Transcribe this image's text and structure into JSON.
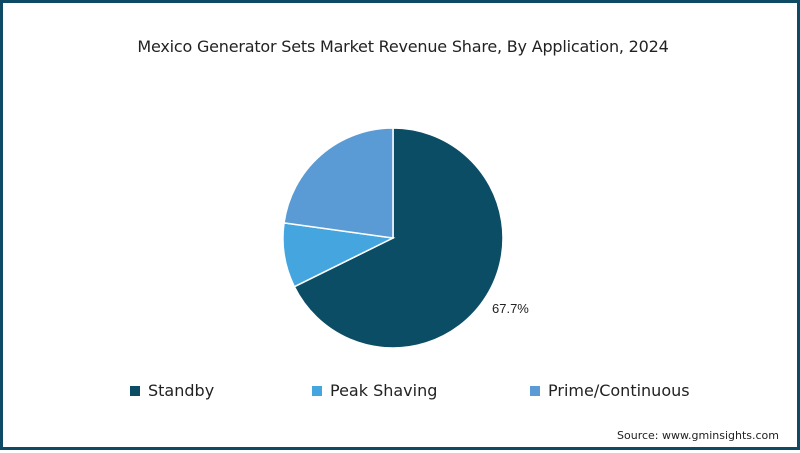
{
  "chart_data": {
    "type": "pie",
    "title": "Mexico Generator Sets Market Revenue Share, By Application, 2024",
    "categories": [
      "Standby",
      "Peak Shaving",
      "Prime/Continuous"
    ],
    "values": [
      67.7,
      9.5,
      22.8
    ],
    "colors": [
      "#0b4d64",
      "#45a6df",
      "#5b9bd5"
    ],
    "data_labels": [
      {
        "category": "Standby",
        "text": "67.7%"
      }
    ],
    "legend_position": "bottom",
    "start_angle_deg": 0,
    "direction": "clockwise"
  },
  "title": "Mexico Generator Sets Market Revenue Share, By Application, 2024",
  "legend": [
    {
      "label": "Standby",
      "color": "#0b4d64"
    },
    {
      "label": "Peak Shaving",
      "color": "#45a6df"
    },
    {
      "label": "Prime/Continuous",
      "color": "#5b9bd5"
    }
  ],
  "data_label": "67.7%",
  "source": "Source: www.gminsights.com",
  "frame_color": "#0e4a63"
}
